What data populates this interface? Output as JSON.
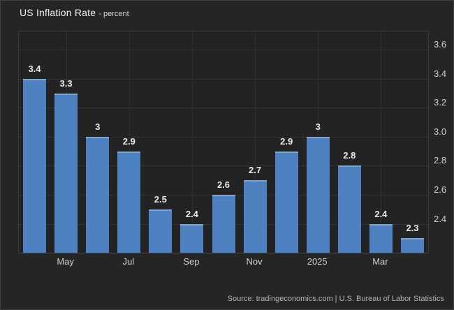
{
  "title": {
    "main": "US Inflation Rate",
    "subtitle": "- percent"
  },
  "source_text": "Source: tradingeconomics.com | U.S. Bureau of Labor Statistics",
  "colors": {
    "background": "#252525",
    "bar": "#4d81c1",
    "bar_top_edge": "#7ba6d9",
    "grid": "#333333",
    "axis_text": "#cfcfcf",
    "value_text": "#e9e9e9",
    "title_text": "#f2f2f2",
    "source_text": "#b3b3b3"
  },
  "chart_data": {
    "type": "bar",
    "title": "US Inflation Rate - percent",
    "xlabel": "",
    "ylabel": "percent",
    "values": [
      3.4,
      3.3,
      3.0,
      2.9,
      2.5,
      2.4,
      2.6,
      2.7,
      2.9,
      3.0,
      2.8,
      2.4,
      2.3
    ],
    "value_labels": [
      "3.4",
      "3.3",
      "3",
      "2.9",
      "2.5",
      "2.4",
      "2.6",
      "2.7",
      "2.9",
      "3",
      "2.8",
      "2.4",
      "2.3"
    ],
    "x_ticks": [
      {
        "label": "May",
        "bar_index": 1
      },
      {
        "label": "Jul",
        "bar_index": 3
      },
      {
        "label": "Sep",
        "bar_index": 5
      },
      {
        "label": "Nov",
        "bar_index": 7
      },
      {
        "label": "2025",
        "bar_index": 9
      },
      {
        "label": "Mar",
        "bar_index": 11
      }
    ],
    "y_axis": {
      "side": "right",
      "tick_labels": [
        "3.6",
        "3.4",
        "3.2",
        "3.0",
        "2.8",
        "2.6",
        "2.4"
      ],
      "tick_values": [
        3.6,
        3.4,
        3.2,
        3.0,
        2.8,
        2.6,
        2.4
      ],
      "min": 2.2,
      "max": 3.726
    },
    "grid": true,
    "legend": false
  }
}
